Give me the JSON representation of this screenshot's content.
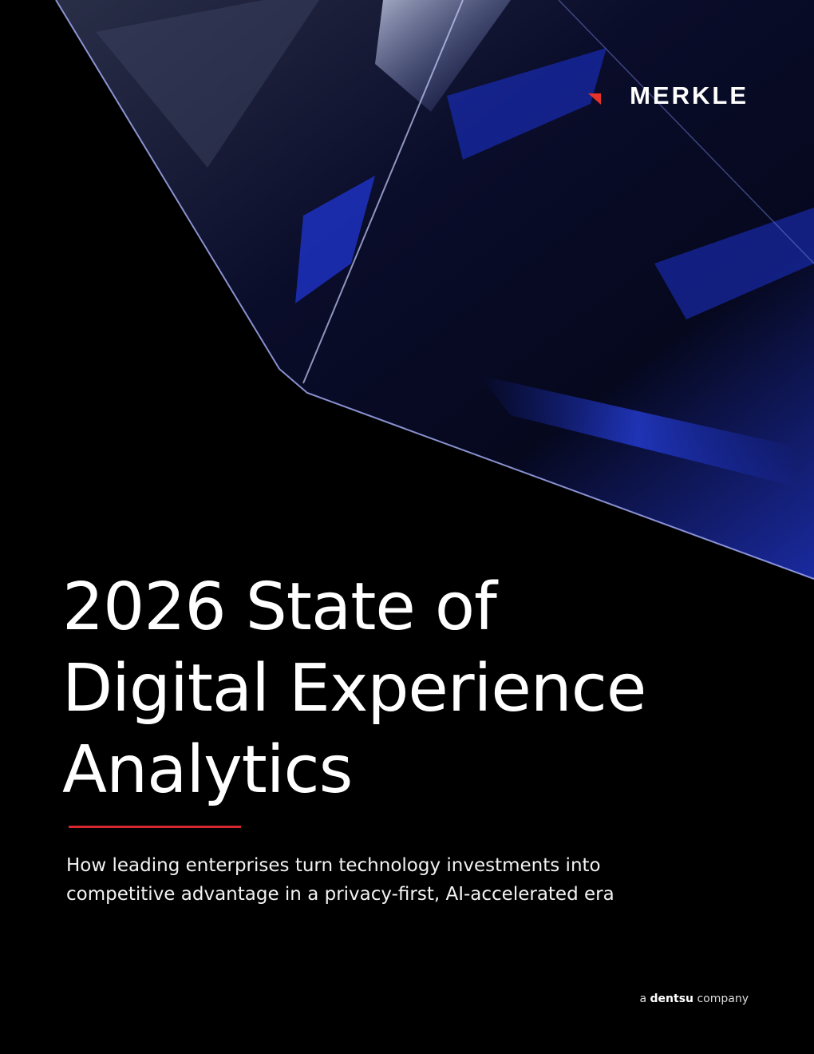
{
  "brand": "MERKLE",
  "title": {
    "lines": [
      "2026 State of",
      "Digital Experience",
      "Analytics"
    ]
  },
  "subtitle": {
    "lines": [
      "How leading enterprises turn technology investments into",
      "competitive advantage in a privacy-first, AI-accelerated era"
    ]
  },
  "footer": {
    "prefix": "a",
    "company": "dentsu",
    "suffix": "company"
  }
}
